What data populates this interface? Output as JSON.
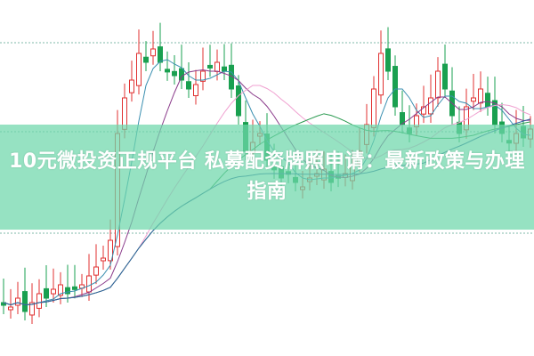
{
  "title": "10元微投资正规平台 私募配资牌照申请：最新政策与办理指南",
  "colors": {
    "up": "#e03030",
    "down": "#1aa050",
    "band": "#6ed7aa"
  }
}
